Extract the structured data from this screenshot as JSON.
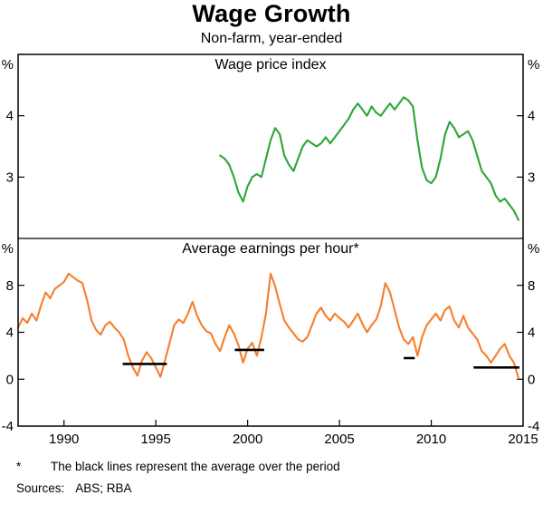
{
  "title": "Wage Growth",
  "subtitle": "Non-farm, year-ended",
  "footnote": {
    "marker": "*",
    "text": "The black lines represent the average over the period"
  },
  "sources": {
    "label": "Sources:",
    "text": "ABS; RBA"
  },
  "colors": {
    "wpi": "#2ca636",
    "aeph": "#f57f2d",
    "average": "#000000",
    "frame": "#000000",
    "background": "#ffffff"
  },
  "x_axis": {
    "range": [
      1987.5,
      2015
    ],
    "ticks": [
      1990,
      1995,
      2000,
      2005,
      2010,
      2015
    ],
    "labels": [
      "1990",
      "1995",
      "2000",
      "2005",
      "2010",
      "2015"
    ]
  },
  "chart_data": [
    {
      "type": "line",
      "panel": "top",
      "title": "Wage price index",
      "unit": "%",
      "ylim": [
        2,
        5
      ],
      "yticks": [
        3,
        4
      ],
      "grid": false,
      "series": [
        {
          "id": "wpi",
          "name": "Wage price index",
          "color_key": "wpi",
          "x": [
            1998.5,
            1998.75,
            1999,
            1999.25,
            1999.5,
            1999.75,
            2000,
            2000.25,
            2000.5,
            2000.75,
            2001,
            2001.25,
            2001.5,
            2001.75,
            2002,
            2002.25,
            2002.5,
            2002.75,
            2003,
            2003.25,
            2003.5,
            2003.75,
            2004,
            2004.25,
            2004.5,
            2004.75,
            2005,
            2005.25,
            2005.5,
            2005.75,
            2006,
            2006.25,
            2006.5,
            2006.75,
            2007,
            2007.25,
            2007.5,
            2007.75,
            2008,
            2008.25,
            2008.5,
            2008.75,
            2009,
            2009.25,
            2009.5,
            2009.75,
            2010,
            2010.25,
            2010.5,
            2010.75,
            2011,
            2011.25,
            2011.5,
            2011.75,
            2012,
            2012.25,
            2012.5,
            2012.75,
            2013,
            2013.25,
            2013.5,
            2013.75,
            2014,
            2014.25,
            2014.5,
            2014.75
          ],
          "y": [
            3.35,
            3.3,
            3.2,
            3.0,
            2.75,
            2.6,
            2.85,
            3.0,
            3.05,
            3.0,
            3.3,
            3.6,
            3.8,
            3.7,
            3.35,
            3.2,
            3.1,
            3.3,
            3.5,
            3.6,
            3.55,
            3.5,
            3.55,
            3.65,
            3.55,
            3.65,
            3.75,
            3.85,
            3.95,
            4.1,
            4.2,
            4.1,
            4.0,
            4.15,
            4.05,
            4.0,
            4.1,
            4.2,
            4.1,
            4.2,
            4.3,
            4.25,
            4.15,
            3.6,
            3.15,
            2.95,
            2.9,
            3.0,
            3.3,
            3.7,
            3.9,
            3.8,
            3.65,
            3.7,
            3.75,
            3.6,
            3.35,
            3.1,
            3.0,
            2.9,
            2.7,
            2.6,
            2.65,
            2.55,
            2.45,
            2.3
          ]
        }
      ]
    },
    {
      "type": "line",
      "panel": "bottom",
      "title": "Average earnings per hour*",
      "unit": "%",
      "ylim": [
        -4,
        12
      ],
      "yticks": [
        -4,
        0,
        4,
        8
      ],
      "grid": false,
      "series": [
        {
          "id": "aeph",
          "name": "Average earnings per hour",
          "color_key": "aeph",
          "x": [
            1987.5,
            1987.75,
            1988,
            1988.25,
            1988.5,
            1988.75,
            1989,
            1989.25,
            1989.5,
            1989.75,
            1990,
            1990.25,
            1990.5,
            1990.75,
            1991,
            1991.25,
            1991.5,
            1991.75,
            1992,
            1992.25,
            1992.5,
            1992.75,
            1993,
            1993.25,
            1993.5,
            1993.75,
            1994,
            1994.25,
            1994.5,
            1994.75,
            1995,
            1995.25,
            1995.5,
            1995.75,
            1996,
            1996.25,
            1996.5,
            1996.75,
            1997,
            1997.25,
            1997.5,
            1997.75,
            1998,
            1998.25,
            1998.5,
            1998.75,
            1999,
            1999.25,
            1999.5,
            1999.75,
            2000,
            2000.25,
            2000.5,
            2000.75,
            2001,
            2001.25,
            2001.5,
            2001.75,
            2002,
            2002.25,
            2002.5,
            2002.75,
            2003,
            2003.25,
            2003.5,
            2003.75,
            2004,
            2004.25,
            2004.5,
            2004.75,
            2005,
            2005.25,
            2005.5,
            2005.75,
            2006,
            2006.25,
            2006.5,
            2006.75,
            2007,
            2007.25,
            2007.5,
            2007.75,
            2008,
            2008.25,
            2008.5,
            2008.75,
            2009,
            2009.25,
            2009.5,
            2009.75,
            2010,
            2010.25,
            2010.5,
            2010.75,
            2011,
            2011.25,
            2011.5,
            2011.75,
            2012,
            2012.25,
            2012.5,
            2012.75,
            2013,
            2013.25,
            2013.5,
            2013.75,
            2014,
            2014.25,
            2014.5,
            2014.75
          ],
          "y": [
            4.4,
            5.2,
            4.8,
            5.6,
            5.0,
            6.3,
            7.4,
            6.9,
            7.7,
            8.0,
            8.3,
            9.0,
            8.7,
            8.4,
            8.2,
            6.8,
            5.0,
            4.2,
            3.8,
            4.6,
            4.9,
            4.4,
            4.0,
            3.4,
            2.0,
            1.0,
            0.3,
            1.6,
            2.3,
            1.8,
            1.0,
            0.2,
            1.6,
            3.1,
            4.6,
            5.1,
            4.8,
            5.6,
            6.6,
            5.4,
            4.6,
            4.1,
            3.9,
            3.0,
            2.4,
            3.6,
            4.6,
            3.9,
            2.9,
            1.4,
            2.6,
            3.1,
            2.0,
            3.6,
            5.6,
            9.0,
            7.9,
            6.4,
            5.0,
            4.4,
            3.9,
            3.4,
            3.2,
            3.6,
            4.6,
            5.6,
            6.1,
            5.4,
            5.0,
            5.6,
            5.2,
            4.9,
            4.4,
            5.0,
            5.6,
            4.7,
            4.0,
            4.6,
            5.1,
            6.2,
            8.2,
            7.4,
            5.9,
            4.4,
            3.4,
            3.0,
            3.6,
            2.0,
            3.6,
            4.6,
            5.1,
            5.6,
            5.0,
            5.9,
            6.2,
            5.0,
            4.4,
            5.4,
            4.4,
            3.9,
            3.4,
            2.4,
            2.0,
            1.4,
            2.0,
            2.6,
            3.0,
            2.0,
            1.4,
            0.1
          ]
        }
      ],
      "average_segments": [
        {
          "x0": 1993.2,
          "x1": 1995.6,
          "y": 1.3
        },
        {
          "x0": 1999.3,
          "x1": 2000.9,
          "y": 2.5
        },
        {
          "x0": 2008.5,
          "x1": 2009.1,
          "y": 1.8
        },
        {
          "x0": 2012.3,
          "x1": 2014.8,
          "y": 1.0
        }
      ]
    }
  ]
}
